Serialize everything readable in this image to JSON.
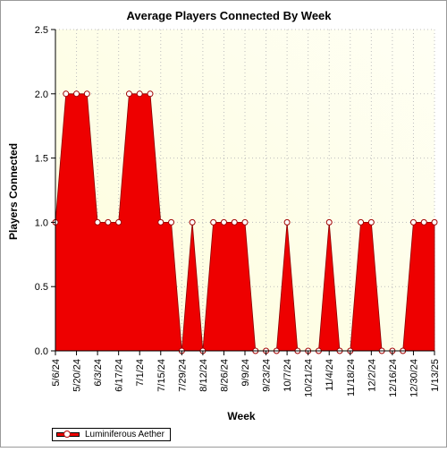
{
  "chart_data": {
    "type": "area",
    "title": "Average Players Connected By Week",
    "xlabel": "Week",
    "ylabel": "Players Connected",
    "ylim": [
      0,
      2.5
    ],
    "yticks": [
      "0.0",
      "0.5",
      "1.0",
      "1.5",
      "2.0",
      "2.5"
    ],
    "grid": true,
    "legend_position": "bottom-left",
    "x": [
      "5/6/24",
      "5/13/24",
      "5/20/24",
      "5/27/24",
      "6/3/24",
      "6/10/24",
      "6/17/24",
      "6/24/24",
      "7/1/24",
      "7/8/24",
      "7/15/24",
      "7/22/24",
      "7/29/24",
      "8/5/24",
      "8/12/24",
      "8/19/24",
      "8/26/24",
      "9/2/24",
      "9/9/24",
      "9/16/24",
      "9/23/24",
      "9/30/24",
      "10/7/24",
      "10/14/24",
      "10/21/24",
      "10/28/24",
      "11/4/24",
      "11/11/24",
      "11/18/24",
      "11/25/24",
      "12/2/24",
      "12/9/24",
      "12/16/24",
      "12/23/24",
      "12/30/24",
      "1/6/25",
      "1/13/25"
    ],
    "xtick_labels": [
      "5/6/24",
      "5/20/24",
      "6/3/24",
      "6/17/24",
      "7/1/24",
      "7/15/24",
      "7/29/24",
      "8/12/24",
      "8/26/24",
      "9/9/24",
      "9/23/24",
      "10/7/24",
      "10/21/24",
      "11/4/24",
      "11/18/24",
      "12/2/24",
      "12/16/24",
      "12/30/24",
      "1/13/25"
    ],
    "series": [
      {
        "name": "Luminiferous Aether",
        "color": "#ee0000",
        "values": [
          1,
          2,
          2,
          2,
          1,
          1,
          1,
          2,
          2,
          2,
          1,
          1,
          0,
          1,
          0,
          1,
          1,
          1,
          1,
          0,
          0,
          0,
          1,
          0,
          0,
          0,
          1,
          0,
          0,
          1,
          1,
          0,
          0,
          0,
          1,
          1,
          1
        ]
      }
    ],
    "colors": {
      "fill": "#ee0000",
      "plot_background": "#fdfde2",
      "marker_fill": "#ffffff",
      "grid": "#bdbdbd"
    }
  }
}
